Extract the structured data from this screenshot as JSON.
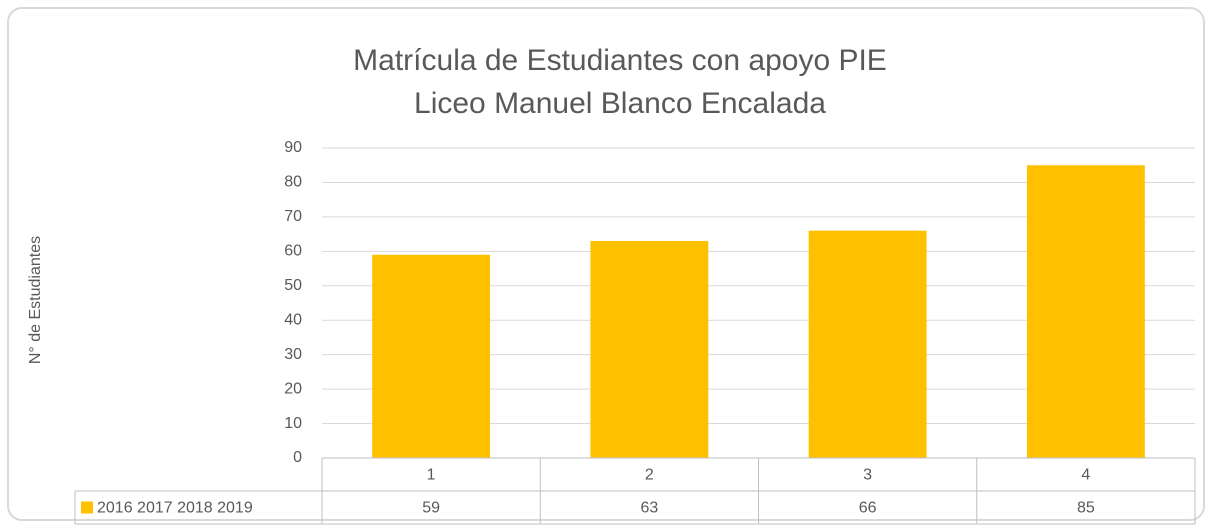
{
  "chart_data": {
    "type": "bar",
    "title": "Matrícula de Estudiantes con apoyo PIE",
    "subtitle": "Liceo Manuel Blanco Encalada",
    "y_label": "N° de Estudiantes",
    "categories": [
      "1",
      "2",
      "3",
      "4"
    ],
    "series": [
      {
        "name": "2016 2017 2018 2019",
        "color": "#FFC000",
        "values": [
          59,
          63,
          66,
          85
        ]
      }
    ],
    "ylim": [
      0,
      90
    ],
    "yticks": [
      0,
      10,
      20,
      30,
      40,
      50,
      60,
      70,
      80,
      90
    ],
    "grid": true,
    "data_table": true
  }
}
